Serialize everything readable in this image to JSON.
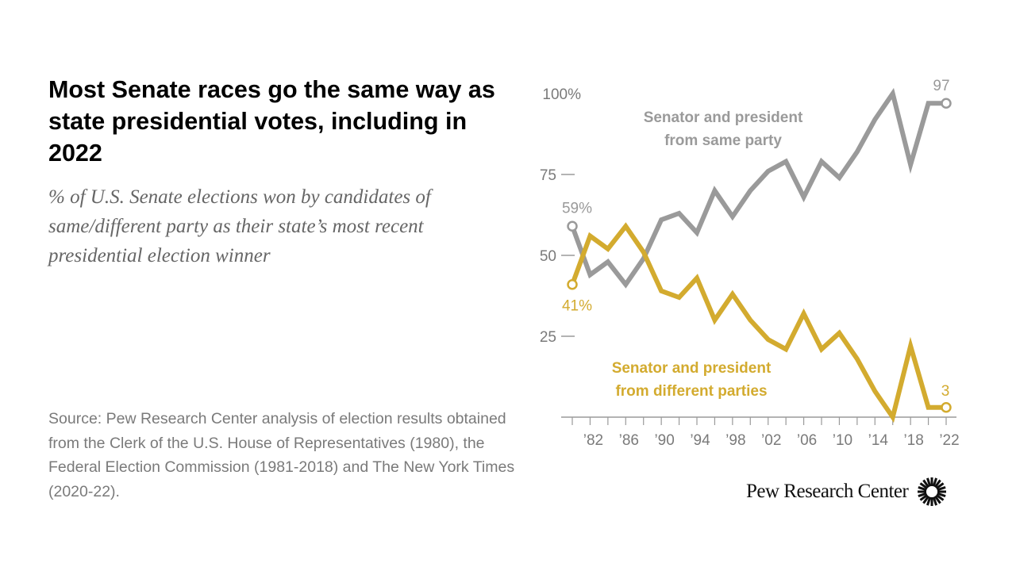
{
  "title": "Most Senate races go the same way as state presidential votes, including in 2022",
  "subtitle": "% of U.S. Senate elections won by candidates of same/different party as their state’s most recent presidential election winner",
  "source": "Source: Pew Research Center analysis of election results obtained from the Clerk of the U.S. House of Representatives (1980), the Federal Election Commission (1981-2018) and The New York Times (2020-22).",
  "logo": {
    "text": "Pew Research Center",
    "icon": "pew-sunburst-icon"
  },
  "colors": {
    "same": "#9a9a9a",
    "different": "#d3ab2f",
    "axis": "#9a9a9a",
    "axis_text": "#7a7a7a"
  },
  "chart_data": {
    "type": "line",
    "x": [
      1980,
      1982,
      1984,
      1986,
      1988,
      1990,
      1992,
      1994,
      1996,
      1998,
      2000,
      2002,
      2004,
      2006,
      2008,
      2010,
      2012,
      2014,
      2016,
      2018,
      2020,
      2022
    ],
    "x_tick_labels": [
      "’82",
      "’86",
      "’90",
      "’94",
      "’98",
      "’02",
      "’06",
      "’10",
      "’14",
      "’18",
      "’22"
    ],
    "x_tick_values": [
      1982,
      1986,
      1990,
      1994,
      1998,
      2002,
      2006,
      2010,
      2014,
      2018,
      2022
    ],
    "ylim": [
      0,
      100
    ],
    "y_ticks": [
      25,
      50,
      75
    ],
    "y_top_label": "100%",
    "y_tick_labels": [
      "25",
      "50",
      "75"
    ],
    "series": [
      {
        "name": "Senator and president from same party",
        "label_lines": [
          "Senator and president",
          "from same party"
        ],
        "values": [
          59,
          44,
          48,
          41,
          49,
          61,
          63,
          57,
          70,
          62,
          70,
          76,
          79,
          68,
          79,
          74,
          82,
          92,
          100,
          78,
          97,
          97
        ],
        "start_label": "59%",
        "end_label": "97"
      },
      {
        "name": "Senator and president from different parties",
        "label_lines": [
          "Senator and president",
          "from different parties"
        ],
        "values": [
          41,
          56,
          52,
          59,
          51,
          39,
          37,
          43,
          30,
          38,
          30,
          24,
          21,
          32,
          21,
          26,
          18,
          8,
          0,
          22,
          3,
          3
        ],
        "start_label": "41%",
        "end_label": "3"
      }
    ]
  }
}
